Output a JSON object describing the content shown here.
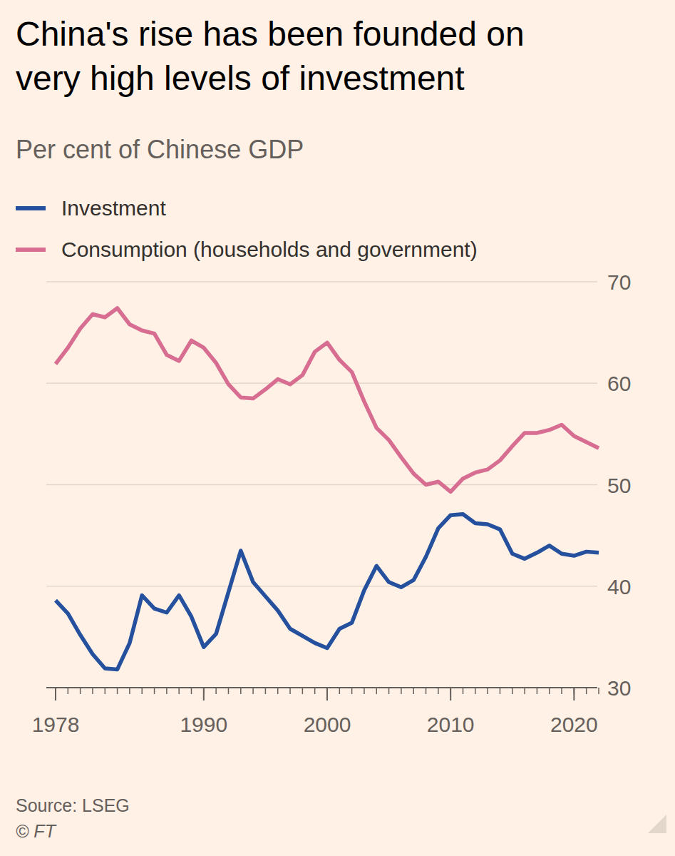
{
  "chart_data": {
    "type": "line",
    "title": "China's rise has been founded on very high levels of investment",
    "subtitle": "Per cent of Chinese GDP",
    "source": "Source: LSEG",
    "credit": "© FT",
    "x": [
      1978,
      1979,
      1980,
      1981,
      1982,
      1983,
      1984,
      1985,
      1986,
      1987,
      1988,
      1989,
      1990,
      1991,
      1992,
      1993,
      1994,
      1995,
      1996,
      1997,
      1998,
      1999,
      2000,
      2001,
      2002,
      2003,
      2004,
      2005,
      2006,
      2007,
      2008,
      2009,
      2010,
      2011,
      2012,
      2013,
      2014,
      2015,
      2016,
      2017,
      2018,
      2019,
      2020,
      2021,
      2022
    ],
    "series": [
      {
        "name": "Investment",
        "color": "#25509e",
        "values": [
          38.6,
          37.3,
          35.2,
          33.3,
          31.9,
          31.8,
          34.4,
          39.1,
          37.8,
          37.4,
          39.1,
          37.0,
          34.0,
          35.3,
          39.4,
          43.5,
          40.4,
          39.0,
          37.6,
          35.8,
          35.1,
          34.4,
          33.9,
          35.8,
          36.4,
          39.6,
          42.0,
          40.4,
          39.9,
          40.6,
          42.9,
          45.7,
          47.0,
          47.1,
          46.2,
          46.1,
          45.6,
          43.2,
          42.7,
          43.3,
          44.0,
          43.2,
          43.0,
          43.4,
          43.3
        ]
      },
      {
        "name": "Consumption (households and government)",
        "color": "#d76d90",
        "values": [
          61.9,
          63.5,
          65.4,
          66.8,
          66.5,
          67.4,
          65.8,
          65.2,
          64.9,
          62.8,
          62.2,
          64.2,
          63.5,
          62.0,
          59.9,
          58.6,
          58.5,
          59.4,
          60.4,
          59.9,
          60.8,
          63.1,
          64.0,
          62.3,
          61.1,
          58.2,
          55.6,
          54.4,
          52.7,
          51.1,
          50.0,
          50.3,
          49.3,
          50.6,
          51.2,
          51.5,
          52.4,
          53.8,
          55.1,
          55.1,
          55.4,
          55.9,
          54.8,
          54.2,
          53.6
        ]
      }
    ],
    "xlim": [
      1978,
      2022
    ],
    "xticks": [
      1978,
      1990,
      2000,
      2010,
      2020
    ],
    "ylim": [
      30,
      70
    ],
    "yticks": [
      30,
      40,
      50,
      60,
      70
    ],
    "grid": true,
    "legend": "top-left"
  }
}
